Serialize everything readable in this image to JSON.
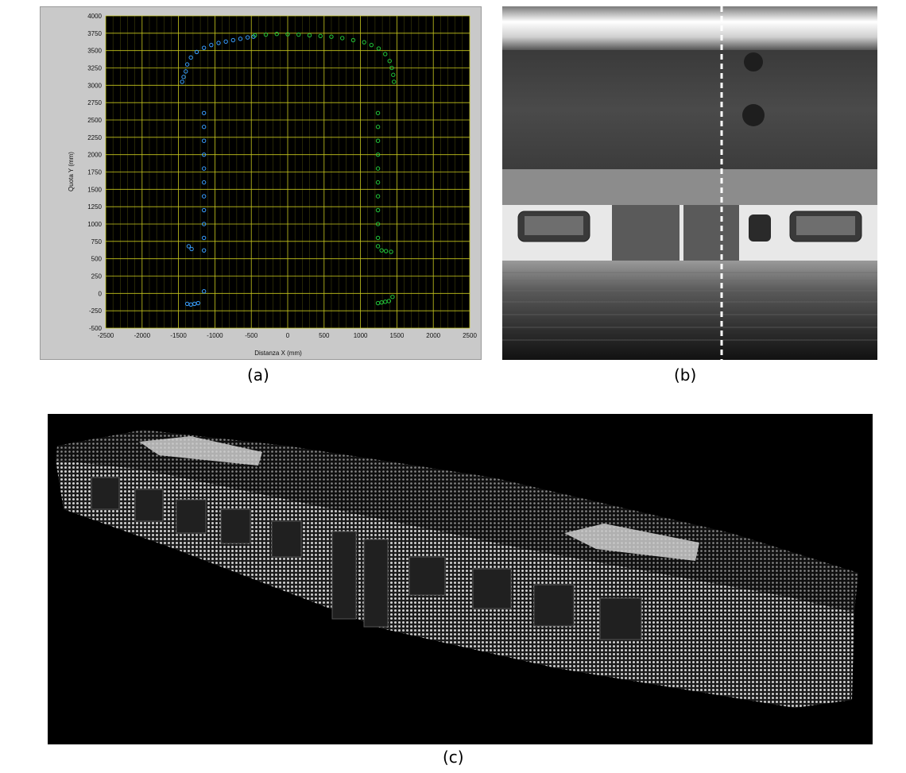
{
  "captions": {
    "a": "(a)",
    "b": "(b)",
    "c": "(c)"
  },
  "colors": {
    "plot_bg": "#000000",
    "grid": "#c8c81e",
    "series_left": "#3aa0ff",
    "series_right": "#22c83a",
    "panel_bg": "#c9c9c9"
  },
  "chart_data": {
    "type": "scatter",
    "title": "",
    "xlabel": "Distanza X (mm)",
    "ylabel": "Quota Y (mm)",
    "xlim": [
      -2500,
      2500
    ],
    "ylim": [
      -500,
      4000
    ],
    "xticks": [
      "-2500",
      "-2000",
      "-1500",
      "-1000",
      "-500",
      "0",
      "500",
      "1000",
      "1500",
      "2000",
      "2500"
    ],
    "yticks": [
      "4000",
      "3750",
      "3500",
      "3250",
      "3000",
      "2750",
      "2500",
      "2250",
      "2000",
      "1750",
      "1500",
      "1250",
      "1000",
      "750",
      "500",
      "250",
      "0",
      "-250",
      "-500"
    ],
    "grid": true,
    "series": [
      {
        "color": "#3aa0ff",
        "points": [
          [
            -1450,
            3050
          ],
          [
            -1430,
            3120
          ],
          [
            -1400,
            3200
          ],
          [
            -1380,
            3300
          ],
          [
            -1330,
            3400
          ],
          [
            -1250,
            3480
          ],
          [
            -1150,
            3540
          ],
          [
            -1050,
            3580
          ],
          [
            -950,
            3610
          ],
          [
            -850,
            3630
          ],
          [
            -750,
            3650
          ],
          [
            -650,
            3670
          ],
          [
            -550,
            3690
          ],
          [
            -470,
            3700
          ],
          [
            -1150,
            2600
          ],
          [
            -1150,
            2400
          ],
          [
            -1150,
            2200
          ],
          [
            -1150,
            2000
          ],
          [
            -1150,
            1800
          ],
          [
            -1150,
            1600
          ],
          [
            -1150,
            1400
          ],
          [
            -1150,
            1200
          ],
          [
            -1150,
            1000
          ],
          [
            -1150,
            800
          ],
          [
            -1150,
            620
          ],
          [
            -1360,
            680
          ],
          [
            -1320,
            640
          ],
          [
            -1150,
            30
          ],
          [
            -1380,
            -150
          ],
          [
            -1330,
            -160
          ],
          [
            -1280,
            -150
          ],
          [
            -1230,
            -140
          ]
        ]
      },
      {
        "color": "#22c83a",
        "points": [
          [
            -450,
            3720
          ],
          [
            -300,
            3730
          ],
          [
            -150,
            3740
          ],
          [
            0,
            3735
          ],
          [
            150,
            3730
          ],
          [
            300,
            3720
          ],
          [
            450,
            3710
          ],
          [
            600,
            3700
          ],
          [
            750,
            3680
          ],
          [
            900,
            3650
          ],
          [
            1050,
            3620
          ],
          [
            1150,
            3580
          ],
          [
            1250,
            3530
          ],
          [
            1340,
            3450
          ],
          [
            1400,
            3350
          ],
          [
            1430,
            3250
          ],
          [
            1450,
            3150
          ],
          [
            1460,
            3050
          ],
          [
            1240,
            2600
          ],
          [
            1240,
            2400
          ],
          [
            1240,
            2200
          ],
          [
            1240,
            2000
          ],
          [
            1240,
            1800
          ],
          [
            1240,
            1600
          ],
          [
            1240,
            1400
          ],
          [
            1240,
            1200
          ],
          [
            1240,
            1000
          ],
          [
            1240,
            800
          ],
          [
            1240,
            680
          ],
          [
            1290,
            620
          ],
          [
            1350,
            610
          ],
          [
            1420,
            600
          ],
          [
            1240,
            -140
          ],
          [
            1290,
            -130
          ],
          [
            1340,
            -120
          ],
          [
            1390,
            -110
          ],
          [
            1440,
            -50
          ]
        ]
      }
    ]
  }
}
